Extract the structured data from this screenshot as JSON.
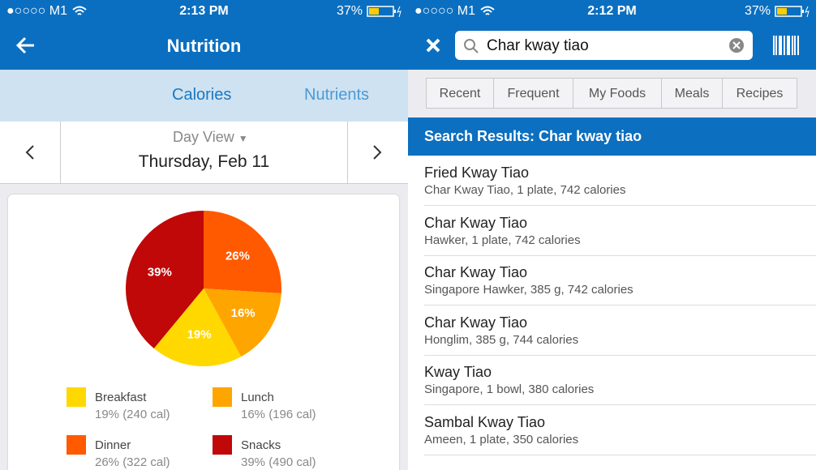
{
  "left_screen": {
    "status_bar": {
      "carrier": "●○○○○ M1",
      "time": "2:13 PM",
      "battery": "37%"
    },
    "nav": {
      "title": "Nutrition"
    },
    "tabs": [
      "Calories",
      "Nutrients"
    ],
    "date_picker": {
      "mode": "Day View",
      "date": "Thursday, Feb 11"
    }
  },
  "chart_data": {
    "type": "pie",
    "categories": [
      "Dinner",
      "Lunch",
      "Breakfast",
      "Snacks"
    ],
    "values": [
      26,
      16,
      19,
      39
    ],
    "value_labels": [
      "26%",
      "16%",
      "19%",
      "39%"
    ],
    "colors": [
      "#ff5a00",
      "#ffa500",
      "#ffd800",
      "#c00808"
    ],
    "legend_details": [
      "26% (322 cal)",
      "16% (196 cal)",
      "19% (240 cal)",
      "39% (490 cal)"
    ]
  },
  "right_screen": {
    "status_bar": {
      "carrier": "●○○○○ M1",
      "time": "2:12 PM",
      "battery": "37%"
    },
    "search_query": "Char kway tiao",
    "filters": [
      "Recent",
      "Frequent",
      "My Foods",
      "Meals",
      "Recipes"
    ],
    "results_header": "Search Results: Char kway tiao",
    "results": [
      {
        "name": "Fried Kway Tiao",
        "detail": "Char Kway Tiao, 1 plate, 742 calories"
      },
      {
        "name": "Char Kway Tiao",
        "detail": "Hawker, 1 plate, 742 calories"
      },
      {
        "name": "Char Kway Tiao",
        "detail": "Singapore Hawker, 385 g, 742 calories"
      },
      {
        "name": "Char Kway Tiao",
        "detail": "Honglim, 385 g, 744 calories"
      },
      {
        "name": "Kway Tiao",
        "detail": "Singapore, 1 bowl, 380 calories"
      },
      {
        "name": "Sambal Kway Tiao",
        "detail": "Ameen, 1 plate, 350 calories"
      }
    ]
  }
}
